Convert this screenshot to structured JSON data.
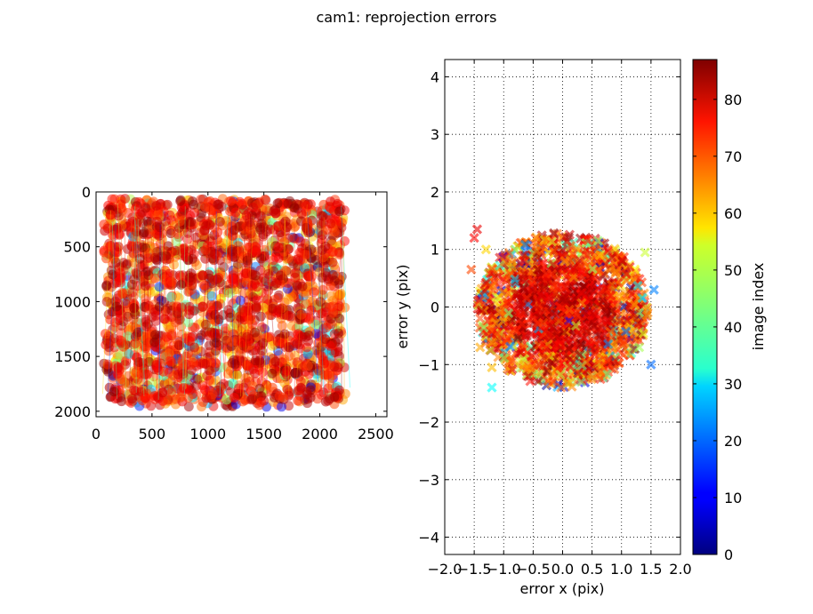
{
  "figure": {
    "title": "cam1: reprojection errors"
  },
  "chart_data": [
    {
      "type": "scatter",
      "name": "detected-corner-positions",
      "title": "",
      "xlabel": "",
      "ylabel": "",
      "xlim": [
        0,
        2600
      ],
      "ylim": [
        2050,
        0
      ],
      "xticks": [
        "0",
        "500",
        "1000",
        "1500",
        "2000",
        "2500"
      ],
      "yticks": [
        "0",
        "500",
        "1000",
        "1500",
        "2000"
      ],
      "grid": false,
      "point_extent": {
        "x": [
          95,
          2230
        ],
        "y": [
          60,
          1960
        ]
      },
      "grid_columns": [
        150,
        400,
        600,
        800,
        1030,
        1270,
        1420,
        1650,
        1850,
        2100
      ],
      "grid_rows": [
        150,
        330,
        560,
        800,
        1100,
        1350,
        1600,
        1850
      ],
      "color_by": "image index (0–87, jet colormap)"
    },
    {
      "type": "scatter",
      "name": "reprojection-errors",
      "title": "",
      "xlabel": "error x (pix)",
      "ylabel": "error y (pix)",
      "xlim": [
        -2.0,
        2.0
      ],
      "ylim": [
        -4.3,
        4.3
      ],
      "xticks": [
        "−2.0",
        "−1.5",
        "−1.0",
        "−0.5",
        "0.0",
        "0.5",
        "1.0",
        "1.5",
        "2.0"
      ],
      "yticks": [
        "−4",
        "−3",
        "−2",
        "−1",
        "0",
        "1",
        "2",
        "3",
        "4"
      ],
      "grid": true,
      "marker": "x",
      "cloud_center": [
        0.0,
        -0.05
      ],
      "cloud_radius": {
        "x": 1.45,
        "y": 1.35
      },
      "outliers": [
        {
          "x": 1.55,
          "y": 0.3,
          "idx": 22
        },
        {
          "x": 1.5,
          "y": -1.0,
          "idx": 20
        },
        {
          "x": -1.2,
          "y": -1.4,
          "idx": 33
        },
        {
          "x": -1.5,
          "y": 1.2,
          "idx": 76
        },
        {
          "x": -1.45,
          "y": 1.35,
          "idx": 78
        },
        {
          "x": 1.4,
          "y": 0.95,
          "idx": 50
        },
        {
          "x": -1.55,
          "y": 0.65,
          "idx": 70
        },
        {
          "x": 1.3,
          "y": -0.7,
          "idx": 47
        },
        {
          "x": -1.4,
          "y": -0.7,
          "idx": 62
        },
        {
          "x": -1.2,
          "y": -1.05,
          "idx": 60
        },
        {
          "x": 0.6,
          "y": 1.15,
          "idx": 45
        },
        {
          "x": -1.3,
          "y": 1.0,
          "idx": 58
        }
      ],
      "color_by": "image index (0–87, jet colormap)"
    }
  ],
  "colorbar": {
    "label": "image index",
    "range": [
      0,
      87
    ],
    "ticks": [
      "0",
      "10",
      "20",
      "30",
      "40",
      "50",
      "60",
      "70",
      "80"
    ],
    "colormap": "jet"
  }
}
